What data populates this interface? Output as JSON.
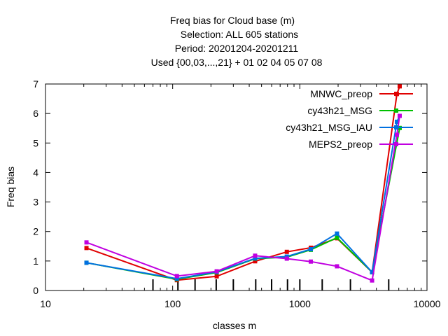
{
  "chart_data": {
    "type": "line",
    "title_lines": [
      "Freq bias  for Cloud base (m)",
      "Selection: ALL    605 stations",
      "Period: 20201204-20201211",
      "Used {00,03,...,21} + 01 02 04 05 07 08"
    ],
    "xlabel": "classes m",
    "ylabel": "Freq bias",
    "xscale": "log",
    "xlim": [
      10,
      10000
    ],
    "ylim": [
      0,
      7
    ],
    "x_ticks": [
      10,
      100,
      1000,
      10000
    ],
    "x_tick_labels": [
      "10",
      "100",
      "1000",
      "10000"
    ],
    "y_ticks": [
      0,
      1,
      2,
      3,
      4,
      5,
      6,
      7
    ],
    "y_tick_labels": [
      "0",
      "1",
      "2",
      "3",
      "4",
      "5",
      "6",
      "7"
    ],
    "class_marks": [
      70,
      110,
      150,
      220,
      300,
      450,
      600,
      800,
      1000,
      1500,
      2500,
      5000
    ],
    "grid": false,
    "legend_position": "top-right",
    "series": [
      {
        "name": "MNWC_preop",
        "color": "#e00000",
        "x": [
          21,
          108,
          222,
          445,
          790,
          1220,
          1960,
          3700,
          5800,
          6100
        ],
        "y": [
          1.44,
          0.35,
          0.48,
          0.99,
          1.31,
          1.45,
          1.77,
          0.62,
          6.66,
          6.92
        ]
      },
      {
        "name": "cy43h21_MSG",
        "color": "#00c000",
        "x": [
          21,
          108,
          222,
          445,
          790,
          1220,
          1960,
          3700,
          6100
        ],
        "y": [
          0.94,
          0.38,
          0.61,
          1.08,
          1.13,
          1.38,
          1.79,
          0.62,
          5.51
        ]
      },
      {
        "name": "cy43h21_MSG_IAU",
        "color": "#0070e0",
        "x": [
          21,
          108,
          222,
          445,
          790,
          1220,
          1960,
          3700,
          5800,
          6100
        ],
        "y": [
          0.94,
          0.4,
          0.63,
          1.09,
          1.15,
          1.4,
          1.93,
          0.62,
          5.72,
          5.92
        ]
      },
      {
        "name": "MEPS2_preop",
        "color": "#c000e0",
        "x": [
          21,
          108,
          222,
          445,
          790,
          1220,
          1960,
          3700,
          5800,
          6100
        ],
        "y": [
          1.63,
          0.49,
          0.65,
          1.18,
          1.08,
          0.98,
          0.82,
          0.34,
          5.28,
          5.92
        ]
      }
    ]
  }
}
